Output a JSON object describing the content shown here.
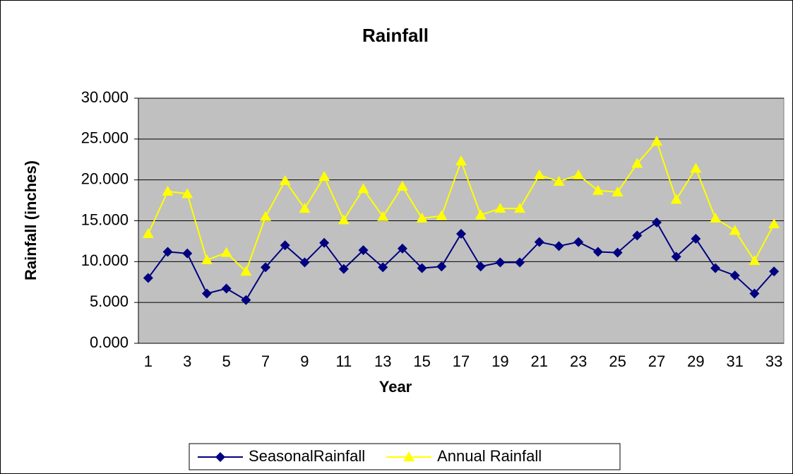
{
  "chart_data": {
    "type": "line",
    "title": "Rainfall",
    "xlabel": "Year",
    "ylabel": "Rainfall (inches)",
    "categories": [
      "1",
      null,
      "3",
      null,
      "5",
      null,
      "7",
      null,
      "9",
      null,
      "11",
      null,
      "13",
      null,
      "15",
      null,
      "17",
      null,
      "19",
      null,
      "21",
      null,
      "23",
      null,
      "25",
      null,
      "27",
      null,
      "29",
      null,
      "31",
      null,
      "33"
    ],
    "series": [
      {
        "name": "SeasonalRainfall",
        "color": "#000080",
        "marker": "diamond",
        "values": [
          8.0,
          11.2,
          11.0,
          6.1,
          6.7,
          5.3,
          9.3,
          12.0,
          9.9,
          12.3,
          9.1,
          11.4,
          9.3,
          11.6,
          9.2,
          9.4,
          13.4,
          9.4,
          9.9,
          9.9,
          12.4,
          11.9,
          12.4,
          11.2,
          11.1,
          13.2,
          14.8,
          10.6,
          12.8,
          9.2,
          8.3,
          6.1,
          8.8
        ]
      },
      {
        "name": "Annual Rainfall",
        "color": "#ffff00",
        "marker": "triangle",
        "values": [
          13.4,
          18.6,
          18.3,
          10.2,
          11.1,
          8.8,
          15.5,
          19.9,
          16.5,
          20.4,
          15.1,
          18.9,
          15.5,
          19.2,
          15.3,
          15.6,
          22.3,
          15.7,
          16.5,
          16.5,
          20.6,
          19.8,
          20.6,
          18.7,
          18.5,
          22.0,
          24.7,
          17.6,
          21.4,
          15.3,
          13.8,
          10.1,
          14.6
        ]
      }
    ],
    "ylim": [
      0,
      30
    ],
    "yticks": [
      {
        "value": 0,
        "label": "0.000"
      },
      {
        "value": 5,
        "label": "5.000"
      },
      {
        "value": 10,
        "label": "10.000"
      },
      {
        "value": 15,
        "label": "15.000"
      },
      {
        "value": 20,
        "label": "20.000"
      },
      {
        "value": 25,
        "label": "25.000"
      },
      {
        "value": 30,
        "label": "30.000"
      }
    ],
    "grid": true,
    "plot_background": "#c0c0c0",
    "legend": "bottom"
  }
}
